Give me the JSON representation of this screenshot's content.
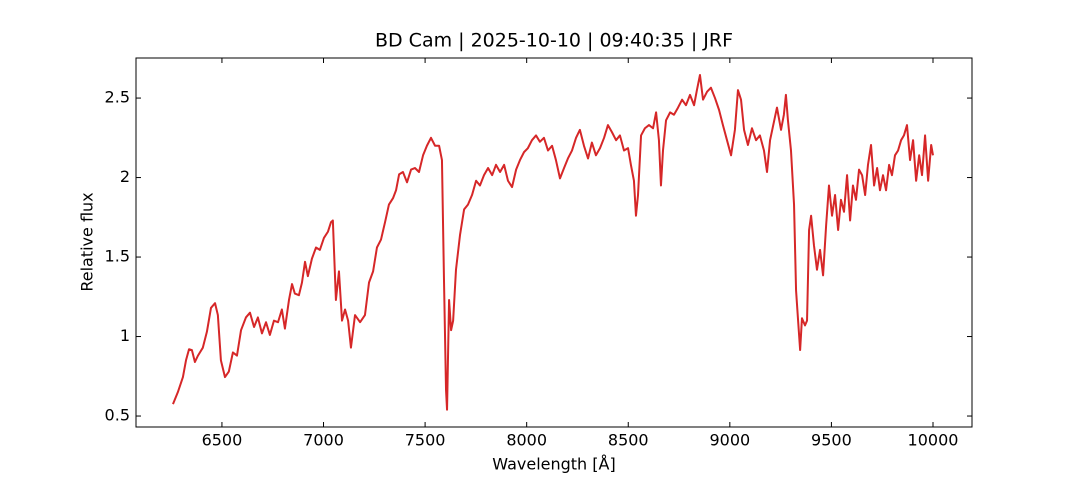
{
  "chart_data": {
    "type": "line",
    "title": "BD Cam | 2025-10-10 | 09:40:35 | JRF",
    "x_label": "Wavelength [Å]",
    "y_label": "Relative flux",
    "xlim": [
      6077,
      10192
    ],
    "ylim": [
      0.431,
      2.752
    ],
    "xticks": [
      6500,
      7000,
      7500,
      8000,
      8500,
      9000,
      9500,
      10000
    ],
    "yticks": [
      0.5,
      1.0,
      1.5,
      2.0,
      2.5
    ],
    "series": [
      {
        "name": "BD Cam",
        "color": "#d62728",
        "x": [
          6259,
          6283,
          6308,
          6323,
          6338,
          6352,
          6367,
          6382,
          6406,
          6426,
          6446,
          6466,
          6480,
          6495,
          6515,
          6534,
          6554,
          6574,
          6594,
          6618,
          6638,
          6658,
          6677,
          6697,
          6717,
          6736,
          6756,
          6776,
          6795,
          6810,
          6830,
          6845,
          6859,
          6879,
          6894,
          6909,
          6923,
          6943,
          6963,
          6982,
          7002,
          7022,
          7037,
          7046,
          7061,
          7076,
          7091,
          7106,
          7121,
          7135,
          7155,
          7180,
          7204,
          7224,
          7244,
          7263,
          7283,
          7303,
          7322,
          7342,
          7357,
          7372,
          7391,
          7411,
          7431,
          7450,
          7470,
          7490,
          7509,
          7529,
          7549,
          7569,
          7583,
          7593,
          7603,
          7608,
          7618,
          7628,
          7638,
          7652,
          7672,
          7692,
          7711,
          7731,
          7751,
          7770,
          7790,
          7810,
          7830,
          7849,
          7869,
          7889,
          7908,
          7928,
          7948,
          7967,
          7987,
          8006,
          8026,
          8046,
          8065,
          8085,
          8105,
          8125,
          8144,
          8164,
          8184,
          8203,
          8223,
          8243,
          8262,
          8282,
          8302,
          8321,
          8341,
          8361,
          8381,
          8400,
          8420,
          8440,
          8459,
          8479,
          8499,
          8513,
          8528,
          8538,
          8548,
          8563,
          8582,
          8602,
          8622,
          8637,
          8651,
          8661,
          8671,
          8686,
          8706,
          8725,
          8745,
          8765,
          8784,
          8804,
          8824,
          8838,
          8853,
          8868,
          8888,
          8907,
          8927,
          8947,
          8966,
          8986,
          9006,
          9025,
          9040,
          9055,
          9070,
          9089,
          9109,
          9129,
          9148,
          9168,
          9183,
          9198,
          9217,
          9232,
          9252,
          9266,
          9276,
          9286,
          9301,
          9316,
          9326,
          9336,
          9346,
          9355,
          9370,
          9380,
          9390,
          9400,
          9414,
          9429,
          9444,
          9459,
          9474,
          9488,
          9503,
          9518,
          9533,
          9547,
          9562,
          9577,
          9592,
          9606,
          9621,
          9636,
          9651,
          9666,
          9680,
          9695,
          9710,
          9725,
          9739,
          9754,
          9769,
          9784,
          9798,
          9813,
          9828,
          9843,
          9857,
          9872,
          9887,
          9902,
          9917,
          9932,
          9946,
          9961,
          9976,
          9991,
          10000
        ],
        "values": [
          0.575,
          0.65,
          0.745,
          0.85,
          0.92,
          0.915,
          0.84,
          0.88,
          0.93,
          1.03,
          1.18,
          1.21,
          1.135,
          0.85,
          0.745,
          0.78,
          0.9,
          0.88,
          1.04,
          1.12,
          1.15,
          1.06,
          1.12,
          1.02,
          1.09,
          1.01,
          1.1,
          1.09,
          1.17,
          1.05,
          1.23,
          1.33,
          1.27,
          1.26,
          1.34,
          1.47,
          1.38,
          1.49,
          1.56,
          1.545,
          1.62,
          1.66,
          1.72,
          1.73,
          1.23,
          1.41,
          1.1,
          1.17,
          1.1,
          0.93,
          1.135,
          1.09,
          1.135,
          1.34,
          1.41,
          1.56,
          1.61,
          1.72,
          1.83,
          1.87,
          1.92,
          2.02,
          2.035,
          1.97,
          2.05,
          2.06,
          2.035,
          2.14,
          2.2,
          2.25,
          2.2,
          2.2,
          2.11,
          1.355,
          0.665,
          0.54,
          1.23,
          1.04,
          1.1,
          1.42,
          1.64,
          1.8,
          1.83,
          1.89,
          1.98,
          1.95,
          2.015,
          2.06,
          2.015,
          2.08,
          2.035,
          2.08,
          1.98,
          1.94,
          2.05,
          2.11,
          2.16,
          2.185,
          2.235,
          2.265,
          2.225,
          2.25,
          2.17,
          2.2,
          2.11,
          1.995,
          2.06,
          2.12,
          2.17,
          2.25,
          2.3,
          2.2,
          2.12,
          2.22,
          2.14,
          2.185,
          2.25,
          2.33,
          2.285,
          2.235,
          2.265,
          2.17,
          2.185,
          2.08,
          1.98,
          1.76,
          1.89,
          2.265,
          2.31,
          2.33,
          2.31,
          2.41,
          2.235,
          1.95,
          2.17,
          2.36,
          2.41,
          2.395,
          2.44,
          2.49,
          2.455,
          2.52,
          2.455,
          2.55,
          2.645,
          2.49,
          2.54,
          2.565,
          2.5,
          2.425,
          2.33,
          2.235,
          2.14,
          2.3,
          2.55,
          2.49,
          2.3,
          2.205,
          2.31,
          2.235,
          2.265,
          2.17,
          2.035,
          2.235,
          2.35,
          2.44,
          2.3,
          2.395,
          2.52,
          2.36,
          2.17,
          1.83,
          1.29,
          1.1,
          0.915,
          1.115,
          1.07,
          1.1,
          1.67,
          1.76,
          1.575,
          1.42,
          1.545,
          1.385,
          1.7,
          1.95,
          1.76,
          1.89,
          1.67,
          1.86,
          1.785,
          2.015,
          1.73,
          1.95,
          1.86,
          2.05,
          2.015,
          1.89,
          2.08,
          2.205,
          1.95,
          2.06,
          1.92,
          2.015,
          1.92,
          2.08,
          2.015,
          2.14,
          2.17,
          2.235,
          2.265,
          2.33,
          2.11,
          2.235,
          1.98,
          2.14,
          2.015,
          2.265,
          1.98,
          2.205,
          2.14
        ]
      }
    ]
  }
}
